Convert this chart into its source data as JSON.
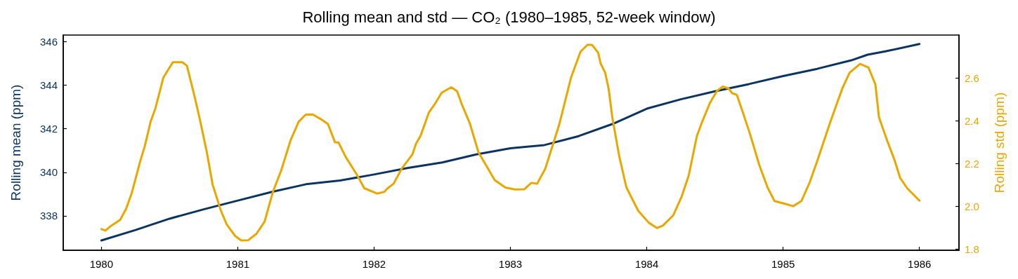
{
  "chart_data": {
    "type": "line",
    "title": "Rolling mean and std — CO₂ (1980–1985, 52-week window)",
    "ylabel": "Rolling mean (ppm)",
    "y2label": "Rolling std (ppm)",
    "xlim": [
      1979.72,
      1986.29
    ],
    "xticks": [
      1980,
      1981,
      1982,
      1983,
      1984,
      1985,
      1986
    ],
    "ylim": [
      336.42,
      346.3
    ],
    "yticks": [
      338,
      340,
      342,
      344,
      346
    ],
    "y2lim": [
      1.794,
      2.8
    ],
    "y2ticks": [
      {
        "value": 1.8,
        "label": "1.8"
      },
      {
        "value": 2,
        "label": "2.0"
      },
      {
        "value": 2.2,
        "label": "2.2"
      },
      {
        "value": 2.4,
        "label": "2.4"
      },
      {
        "value": 2.6,
        "label": "2.6"
      }
    ],
    "grid": false,
    "marker": "none",
    "line_style": "solid",
    "series": [
      {
        "color": "#0b3560",
        "x": [
          1980.0,
          1980.25,
          1980.5,
          1980.75,
          1981.0,
          1981.25,
          1981.5,
          1981.75,
          1982.0,
          1982.25,
          1982.5,
          1982.75,
          1983.0,
          1983.25,
          1983.5,
          1983.75,
          1984.0,
          1984.25,
          1984.5,
          1984.75,
          1985.0,
          1985.25,
          1985.5,
          1985.62,
          1985.75,
          1986.0
        ],
        "values": [
          336.87,
          337.35,
          337.87,
          338.3,
          338.7,
          339.1,
          339.45,
          339.62,
          339.9,
          340.2,
          340.45,
          340.82,
          341.1,
          341.25,
          341.66,
          342.22,
          342.92,
          343.35,
          343.72,
          344.05,
          344.42,
          344.75,
          345.14,
          345.4,
          345.55,
          345.89
        ]
      },
      {
        "color": "#e8a800",
        "axis": "y2",
        "x": [
          1980.0,
          1980.03,
          1980.07,
          1980.137,
          1980.18,
          1980.223,
          1980.284,
          1980.318,
          1980.361,
          1980.395,
          1980.455,
          1980.524,
          1980.593,
          1980.627,
          1980.687,
          1980.722,
          1980.773,
          1980.816,
          1980.876,
          1980.919,
          1980.979,
          1981.026,
          1981.077,
          1981.137,
          1981.197,
          1981.258,
          1981.318,
          1981.387,
          1981.447,
          1981.499,
          1981.55,
          1981.619,
          1981.662,
          1981.713,
          1981.739,
          1981.791,
          1981.877,
          1981.928,
          1982.023,
          1982.074,
          1982.1,
          1982.143,
          1982.203,
          1982.281,
          1982.307,
          1982.341,
          1982.402,
          1982.445,
          1982.497,
          1982.566,
          1982.609,
          1982.643,
          1982.704,
          1982.765,
          1982.825,
          1982.885,
          1982.963,
          1983.032,
          1983.101,
          1983.153,
          1983.196,
          1983.256,
          1983.316,
          1983.359,
          1983.445,
          1983.514,
          1983.566,
          1983.6,
          1983.644,
          1983.661,
          1983.695,
          1983.721,
          1983.747,
          1983.799,
          1983.85,
          1983.936,
          1984.014,
          1984.075,
          1984.118,
          1984.195,
          1984.256,
          1984.308,
          1984.368,
          1984.403,
          1984.463,
          1984.515,
          1984.558,
          1984.601,
          1984.627,
          1984.661,
          1984.696,
          1984.756,
          1984.825,
          1984.885,
          1984.937,
          1985.014,
          1985.074,
          1985.134,
          1985.195,
          1985.255,
          1985.341,
          1985.393,
          1985.436,
          1985.488,
          1985.565,
          1985.626,
          1985.677,
          1985.703,
          1985.763,
          1985.815,
          1985.858,
          1985.91,
          1986.0
        ],
        "values": [
          1.893,
          1.886,
          1.908,
          1.936,
          1.986,
          2.062,
          2.209,
          2.28,
          2.395,
          2.455,
          2.602,
          2.673,
          2.673,
          2.657,
          2.504,
          2.406,
          2.253,
          2.1,
          1.98,
          1.915,
          1.862,
          1.84,
          1.841,
          1.871,
          1.928,
          2.067,
          2.166,
          2.307,
          2.395,
          2.428,
          2.429,
          2.403,
          2.384,
          2.299,
          2.298,
          2.231,
          2.144,
          2.084,
          2.059,
          2.067,
          2.084,
          2.105,
          2.176,
          2.242,
          2.291,
          2.329,
          2.438,
          2.477,
          2.531,
          2.556,
          2.537,
          2.477,
          2.384,
          2.253,
          2.187,
          2.122,
          2.087,
          2.078,
          2.079,
          2.109,
          2.105,
          2.176,
          2.297,
          2.384,
          2.602,
          2.722,
          2.755,
          2.753,
          2.717,
          2.668,
          2.624,
          2.547,
          2.416,
          2.231,
          2.089,
          1.98,
          1.923,
          1.898,
          1.909,
          1.958,
          2.045,
          2.144,
          2.329,
          2.389,
          2.482,
          2.539,
          2.559,
          2.55,
          2.528,
          2.52,
          2.455,
          2.34,
          2.193,
          2.089,
          2.024,
          2.011,
          2.0,
          2.024,
          2.111,
          2.22,
          2.384,
          2.477,
          2.553,
          2.624,
          2.665,
          2.648,
          2.569,
          2.416,
          2.307,
          2.22,
          2.133,
          2.084,
          2.026
        ]
      }
    ]
  }
}
